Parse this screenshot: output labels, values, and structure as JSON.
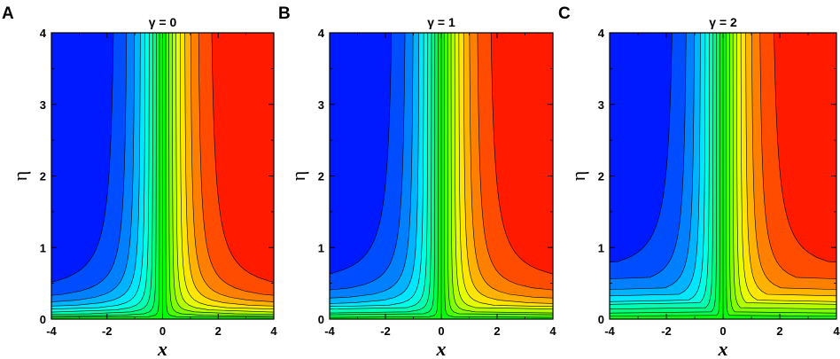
{
  "figure": {
    "panels": [
      {
        "letter": "A",
        "title": "γ = 0"
      },
      {
        "letter": "B",
        "title": "γ = 1"
      },
      {
        "letter": "C",
        "title": "γ = 2"
      }
    ]
  },
  "chart_data": [
    {
      "type": "heatmap",
      "panel": "A",
      "title": "γ = 0",
      "xlabel": "x",
      "ylabel": "η",
      "xlim": [
        -4,
        4
      ],
      "ylim": [
        0,
        4
      ],
      "xticks": [
        "-4",
        "-2",
        "0",
        "2",
        "4"
      ],
      "yticks": [
        "0",
        "1",
        "2",
        "3",
        "4"
      ],
      "gamma": 0,
      "colormap": [
        "#0000ff",
        "#00ffff",
        "#00ff00",
        "#ffff00",
        "#ff0000"
      ],
      "contour_levels": 20,
      "contour_line_color": "#000000"
    },
    {
      "type": "heatmap",
      "panel": "B",
      "title": "γ = 1",
      "xlabel": "x",
      "ylabel": "η",
      "xlim": [
        -4,
        4
      ],
      "ylim": [
        0,
        4
      ],
      "xticks": [
        "-4",
        "-2",
        "0",
        "2",
        "4"
      ],
      "yticks": [
        "0",
        "1",
        "2",
        "3",
        "4"
      ],
      "gamma": 1,
      "colormap": [
        "#0000ff",
        "#00ffff",
        "#00ff00",
        "#ffff00",
        "#ff0000"
      ],
      "contour_levels": 20,
      "contour_line_color": "#000000"
    },
    {
      "type": "heatmap",
      "panel": "C",
      "title": "γ = 2",
      "xlabel": "x",
      "ylabel": "η",
      "xlim": [
        -4,
        4
      ],
      "ylim": [
        0,
        4
      ],
      "xticks": [
        "-4",
        "-2",
        "0",
        "2",
        "4"
      ],
      "yticks": [
        "0",
        "1",
        "2",
        "3",
        "4"
      ],
      "gamma": 2,
      "colormap": [
        "#0000ff",
        "#00ffff",
        "#00ff00",
        "#ffff00",
        "#ff0000"
      ],
      "contour_levels": 20,
      "contour_line_color": "#000000"
    }
  ]
}
